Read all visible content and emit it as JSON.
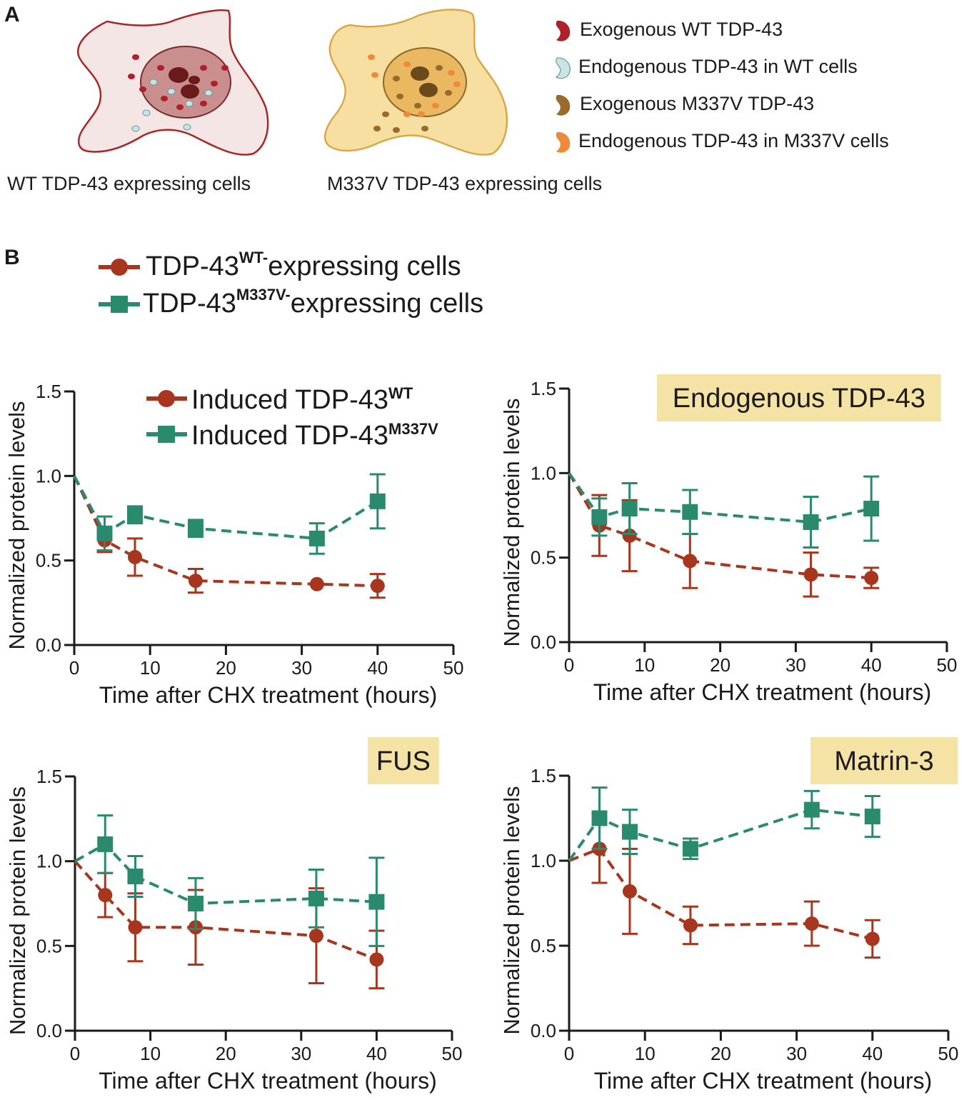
{
  "panel_a": {
    "letter": "A",
    "cells": [
      {
        "caption": "WT TDP-43 expressing cells"
      },
      {
        "caption": "M337V TDP-43 expressing cells"
      }
    ],
    "legend": [
      {
        "label": "Exogenous WT TDP-43",
        "color": "#b0202a"
      },
      {
        "label": "Endogenous TDP-43 in WT cells",
        "color": "#c9e4e4"
      },
      {
        "label": "Exogenous M337V TDP-43",
        "color": "#9a6a2a"
      },
      {
        "label": "Endogenous TDP-43 in M337V cells",
        "color": "#ef8a3a"
      }
    ],
    "colors": {
      "wt_cell_fill": "#f5e6e6",
      "wt_cell_stroke": "#a8282a",
      "wt_nucleus_fill": "#c98f8f",
      "wt_nucleolus": "#6a1a1a",
      "mut_cell_fill": "#f6dfa0",
      "mut_cell_stroke": "#d8a84a",
      "mut_nucleus_fill": "#eab860",
      "mut_nucleolus": "#6a4a1a"
    }
  },
  "panel_b": {
    "letter": "B",
    "legend": [
      {
        "prefix": "TDP-43",
        "sup": "WT-",
        "suffix": "expressing cells",
        "marker": "circle",
        "color": "#a8361e"
      },
      {
        "prefix": "TDP-43",
        "sup": "M337V-",
        "suffix": "expressing cells",
        "marker": "square",
        "color": "#2a8a6e"
      }
    ]
  },
  "chart_data": [
    {
      "type": "line",
      "title": "",
      "legend": [
        {
          "prefix": "Induced TDP-43",
          "sup": "WT",
          "marker": "circle"
        },
        {
          "prefix": "Induced TDP-43",
          "sup": "M337V",
          "marker": "square"
        }
      ],
      "xlabel": "Time after CHX treatment (hours)",
      "ylabel": "Normalized protein levels",
      "xlim": [
        0,
        50
      ],
      "ylim": [
        0,
        1.5
      ],
      "xticks": [
        "0",
        "10",
        "20",
        "30",
        "40",
        "50"
      ],
      "yticks": [
        "0.0",
        "0.5",
        "1.0",
        "1.5"
      ],
      "series": [
        {
          "name": "WT",
          "color": "#a8361e",
          "marker": "circle",
          "x": [
            0,
            4,
            8,
            16,
            32,
            40
          ],
          "y": [
            1.0,
            0.62,
            0.52,
            0.38,
            0.36,
            0.35
          ],
          "err": [
            0,
            0.07,
            0.11,
            0.07,
            0,
            0.07
          ]
        },
        {
          "name": "M337V",
          "color": "#2a8a6e",
          "marker": "square",
          "x": [
            0,
            4,
            8,
            16,
            32,
            40
          ],
          "y": [
            1.0,
            0.66,
            0.77,
            0.69,
            0.63,
            0.85
          ],
          "err": [
            0,
            0.1,
            0.05,
            0.05,
            0.09,
            0.16
          ]
        }
      ]
    },
    {
      "type": "line",
      "title": "Endogenous TDP-43",
      "xlabel": "Time after CHX treatment (hours)",
      "ylabel": "Normalized protein levels",
      "xlim": [
        0,
        50
      ],
      "ylim": [
        0,
        1.5
      ],
      "xticks": [
        "0",
        "10",
        "20",
        "30",
        "40",
        "50"
      ],
      "yticks": [
        "0.0",
        "0.5",
        "1.0",
        "1.5"
      ],
      "series": [
        {
          "name": "WT",
          "color": "#a8361e",
          "marker": "circle",
          "x": [
            0,
            4,
            8,
            16,
            32,
            40
          ],
          "y": [
            1.0,
            0.69,
            0.63,
            0.48,
            0.4,
            0.38
          ],
          "err": [
            0,
            0.18,
            0.21,
            0.16,
            0.13,
            0.06
          ]
        },
        {
          "name": "M337V",
          "color": "#2a8a6e",
          "marker": "square",
          "x": [
            0,
            4,
            8,
            16,
            32,
            40
          ],
          "y": [
            1.0,
            0.74,
            0.79,
            0.77,
            0.71,
            0.79
          ],
          "err": [
            0,
            0.11,
            0.15,
            0.13,
            0.15,
            0.19
          ]
        }
      ]
    },
    {
      "type": "line",
      "title": "FUS",
      "xlabel": "Time after CHX treatment (hours)",
      "ylabel": "Normalized protein levels",
      "xlim": [
        0,
        50
      ],
      "ylim": [
        0,
        1.5
      ],
      "xticks": [
        "0",
        "10",
        "20",
        "30",
        "40",
        "50"
      ],
      "yticks": [
        "0.0",
        "0.5",
        "1.0",
        "1.5"
      ],
      "series": [
        {
          "name": "WT",
          "color": "#a8361e",
          "marker": "circle",
          "x": [
            0,
            4,
            8,
            16,
            32,
            40
          ],
          "y": [
            1.0,
            0.8,
            0.61,
            0.61,
            0.56,
            0.42
          ],
          "err": [
            0,
            0.13,
            0.2,
            0.22,
            0.28,
            0.17
          ]
        },
        {
          "name": "M337V",
          "color": "#2a8a6e",
          "marker": "square",
          "x": [
            0,
            4,
            8,
            16,
            32,
            40
          ],
          "y": [
            1.0,
            1.1,
            0.91,
            0.75,
            0.78,
            0.76
          ],
          "err": [
            0,
            0.17,
            0.12,
            0.15,
            0.17,
            0.26
          ]
        }
      ]
    },
    {
      "type": "line",
      "title": "Matrin-3",
      "xlabel": "Time after CHX treatment (hours)",
      "ylabel": "Normalized protein levels",
      "xlim": [
        0,
        50
      ],
      "ylim": [
        0,
        1.5
      ],
      "xticks": [
        "0",
        "10",
        "20",
        "30",
        "40",
        "50"
      ],
      "yticks": [
        "0.0",
        "0.5",
        "1.0",
        "1.5"
      ],
      "series": [
        {
          "name": "WT",
          "color": "#a8361e",
          "marker": "circle",
          "x": [
            0,
            4,
            8,
            16,
            32,
            40
          ],
          "y": [
            1.0,
            1.07,
            0.82,
            0.62,
            0.63,
            0.54
          ],
          "err": [
            0,
            0.2,
            0.25,
            0.11,
            0.13,
            0.11
          ]
        },
        {
          "name": "M337V",
          "color": "#2a8a6e",
          "marker": "square",
          "x": [
            0,
            4,
            8,
            16,
            32,
            40
          ],
          "y": [
            1.0,
            1.25,
            1.17,
            1.07,
            1.3,
            1.26
          ],
          "err": [
            0,
            0.18,
            0.13,
            0.06,
            0.11,
            0.12
          ]
        }
      ]
    }
  ]
}
